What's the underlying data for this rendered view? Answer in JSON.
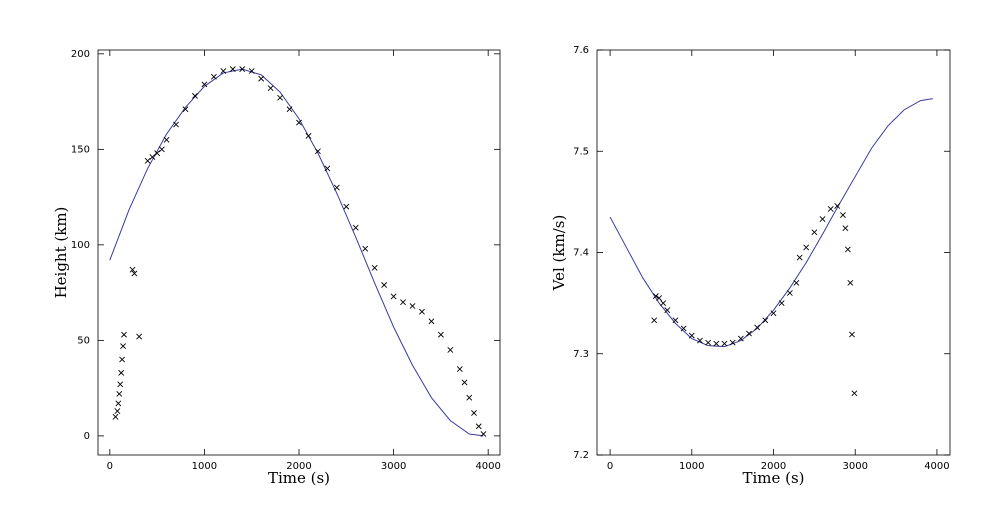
{
  "chart_data": [
    {
      "type": "scatter",
      "xlabel": "Time (s)",
      "ylabel": "Height (km)",
      "xlim": [
        -125,
        4125
      ],
      "ylim": [
        -10,
        202
      ],
      "xticks": [
        0,
        1000,
        2000,
        3000,
        4000
      ],
      "yticks": [
        0,
        50,
        100,
        150,
        200
      ],
      "line": {
        "color": "#3a3aa0",
        "x": [
          0,
          200,
          400,
          600,
          800,
          1000,
          1200,
          1400,
          1600,
          1800,
          2000,
          2200,
          2400,
          2600,
          2800,
          3000,
          3200,
          3400,
          3600,
          3800,
          3950
        ],
        "y": [
          92,
          118,
          140,
          158,
          172,
          183,
          190,
          192,
          189,
          180,
          166,
          148,
          127,
          104,
          80,
          57,
          37,
          20,
          8,
          1,
          0
        ]
      },
      "points": {
        "color": "#000000",
        "x": [
          60,
          80,
          90,
          100,
          110,
          120,
          130,
          140,
          150,
          240,
          260,
          310,
          400,
          450,
          500,
          550,
          600,
          700,
          800,
          900,
          1000,
          1100,
          1200,
          1300,
          1400,
          1500,
          1600,
          1700,
          1800,
          1900,
          2000,
          2100,
          2200,
          2300,
          2400,
          2500,
          2600,
          2700,
          2800,
          2900,
          3000,
          3100,
          3200,
          3300,
          3400,
          3500,
          3600,
          3700,
          3750,
          3800,
          3850,
          3900,
          3950
        ],
        "y": [
          10,
          13,
          17,
          22,
          27,
          33,
          40,
          47,
          53,
          87,
          85,
          52,
          144,
          146,
          148,
          150,
          155,
          163,
          171,
          178,
          184,
          188,
          191,
          192,
          192,
          191,
          187,
          182,
          177,
          171,
          164,
          157,
          149,
          140,
          130,
          120,
          109,
          98,
          88,
          79,
          73,
          70,
          68,
          65,
          60,
          53,
          45,
          35,
          28,
          20,
          12,
          5,
          1
        ]
      }
    },
    {
      "type": "scatter",
      "xlabel": "Time (s)",
      "ylabel": "Vel (km/s)",
      "xlim": [
        -160,
        4160
      ],
      "ylim": [
        7.2,
        7.6
      ],
      "xticks": [
        0,
        1000,
        2000,
        3000,
        4000
      ],
      "yticks": [
        7.2,
        7.3,
        7.4,
        7.5,
        7.6
      ],
      "line": {
        "color": "#3a3aa0",
        "x": [
          0,
          200,
          400,
          600,
          800,
          1000,
          1200,
          1400,
          1600,
          1800,
          2000,
          2200,
          2400,
          2600,
          2800,
          3000,
          3200,
          3400,
          3600,
          3800,
          3950
        ],
        "y": [
          7.435,
          7.405,
          7.375,
          7.35,
          7.33,
          7.315,
          7.308,
          7.307,
          7.313,
          7.325,
          7.343,
          7.365,
          7.39,
          7.418,
          7.447,
          7.475,
          7.503,
          7.525,
          7.541,
          7.55,
          7.552
        ]
      },
      "points": {
        "color": "#000000",
        "x": [
          540,
          560,
          600,
          650,
          700,
          800,
          900,
          1000,
          1100,
          1200,
          1300,
          1400,
          1500,
          1600,
          1700,
          1800,
          1900,
          2000,
          2100,
          2200,
          2280,
          2320,
          2400,
          2500,
          2600,
          2700,
          2780,
          2850,
          2880,
          2910,
          2940,
          2960,
          2990
        ],
        "y": [
          7.333,
          7.357,
          7.355,
          7.35,
          7.343,
          7.333,
          7.325,
          7.318,
          7.313,
          7.311,
          7.31,
          7.31,
          7.311,
          7.315,
          7.32,
          7.326,
          7.333,
          7.34,
          7.35,
          7.36,
          7.37,
          7.395,
          7.405,
          7.42,
          7.433,
          7.443,
          7.446,
          7.437,
          7.424,
          7.403,
          7.37,
          7.319,
          7.261
        ]
      }
    }
  ]
}
